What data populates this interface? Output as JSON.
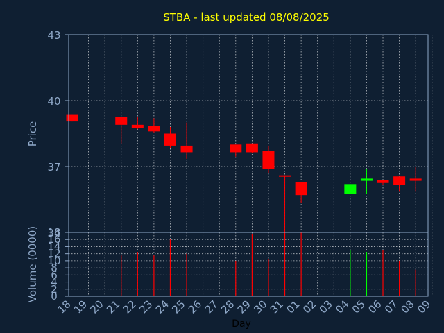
{
  "chart_data": [
    {
      "type": "candlestick",
      "title": "STBA - last updated 08/08/2025",
      "xlabel": "",
      "ylabel": "Price",
      "ylim": [
        34,
        43
      ],
      "yticks": [
        "34",
        "37",
        "40",
        "43"
      ],
      "grid": true,
      "up_color": "#00ff00",
      "down_color": "#ff0000",
      "candles": [
        {
          "date": "2025-07-18",
          "open": 39.35,
          "high": 39.35,
          "low": 39.05,
          "close": 39.05
        },
        {
          "date": "2025-07-21",
          "open": 39.25,
          "high": 39.25,
          "low": 38.05,
          "close": 38.9
        },
        {
          "date": "2025-07-22",
          "open": 38.9,
          "high": 39.25,
          "low": 38.7,
          "close": 38.75
        },
        {
          "date": "2025-07-23",
          "open": 38.85,
          "high": 39.2,
          "low": 38.55,
          "close": 38.6
        },
        {
          "date": "2025-07-24",
          "open": 38.5,
          "high": 38.8,
          "low": 37.85,
          "close": 37.95
        },
        {
          "date": "2025-07-25",
          "open": 37.95,
          "high": 39.0,
          "low": 37.35,
          "close": 37.65
        },
        {
          "date": "2025-07-28",
          "open": 38.0,
          "high": 38.0,
          "low": 37.45,
          "close": 37.65
        },
        {
          "date": "2025-07-29",
          "open": 38.05,
          "high": 38.05,
          "low": 37.6,
          "close": 37.65
        },
        {
          "date": "2025-07-30",
          "open": 37.7,
          "high": 37.95,
          "low": 36.7,
          "close": 36.9
        },
        {
          "date": "2025-07-31",
          "open": 36.6,
          "high": 36.6,
          "low": 34.0,
          "close": 36.55
        },
        {
          "date": "2025-08-01",
          "open": 36.3,
          "high": 36.3,
          "low": 35.35,
          "close": 35.7
        },
        {
          "date": "2025-08-04",
          "open": 35.75,
          "high": 36.2,
          "low": 35.75,
          "close": 36.2
        },
        {
          "date": "2025-08-05",
          "open": 36.35,
          "high": 36.9,
          "low": 35.75,
          "close": 36.45
        },
        {
          "date": "2025-08-06",
          "open": 36.4,
          "high": 36.4,
          "low": 36.15,
          "close": 36.25
        },
        {
          "date": "2025-08-07",
          "open": 36.55,
          "high": 36.55,
          "low": 35.85,
          "close": 36.15
        },
        {
          "date": "2025-08-08",
          "open": 36.45,
          "high": 37.0,
          "low": 35.85,
          "close": 36.35
        }
      ]
    },
    {
      "type": "bar",
      "title": "",
      "xlabel": "Day",
      "ylabel": "Volume (0000)",
      "ylim": [
        0,
        18
      ],
      "yticks": [
        "0",
        "2",
        "4",
        "6",
        "8",
        "10",
        "12",
        "14",
        "16",
        "18"
      ],
      "x": [
        "18",
        "19",
        "20",
        "21",
        "22",
        "23",
        "24",
        "25",
        "26",
        "27",
        "28",
        "29",
        "30",
        "31",
        "01",
        "02",
        "03",
        "04",
        "05",
        "06",
        "07",
        "08",
        "09"
      ],
      "grid": true,
      "volumes": [
        {
          "date": "2025-07-18",
          "value": 0,
          "up": false
        },
        {
          "date": "2025-07-21",
          "value": 11.5,
          "up": false
        },
        {
          "date": "2025-07-22",
          "value": 12.5,
          "up": false
        },
        {
          "date": "2025-07-23",
          "value": 11.5,
          "up": false
        },
        {
          "date": "2025-07-24",
          "value": 16,
          "up": false
        },
        {
          "date": "2025-07-25",
          "value": 12,
          "up": false
        },
        {
          "date": "2025-07-28",
          "value": 10,
          "up": false
        },
        {
          "date": "2025-07-29",
          "value": 17.5,
          "up": false
        },
        {
          "date": "2025-07-30",
          "value": 10.5,
          "up": false
        },
        {
          "date": "2025-07-31",
          "value": 18,
          "up": false
        },
        {
          "date": "2025-08-01",
          "value": 18,
          "up": false
        },
        {
          "date": "2025-08-04",
          "value": 13,
          "up": true
        },
        {
          "date": "2025-08-05",
          "value": 12.5,
          "up": true
        },
        {
          "date": "2025-08-06",
          "value": 13,
          "up": false
        },
        {
          "date": "2025-08-07",
          "value": 10,
          "up": false
        },
        {
          "date": "2025-08-08",
          "value": 7.5,
          "up": false
        }
      ]
    }
  ],
  "colors": {
    "background": "#0f1f32",
    "axis": "#8fa8c8",
    "grid": "#ffffff",
    "title": "#ffff00",
    "label": "#8fa8c8",
    "xlabel": "#000000"
  }
}
